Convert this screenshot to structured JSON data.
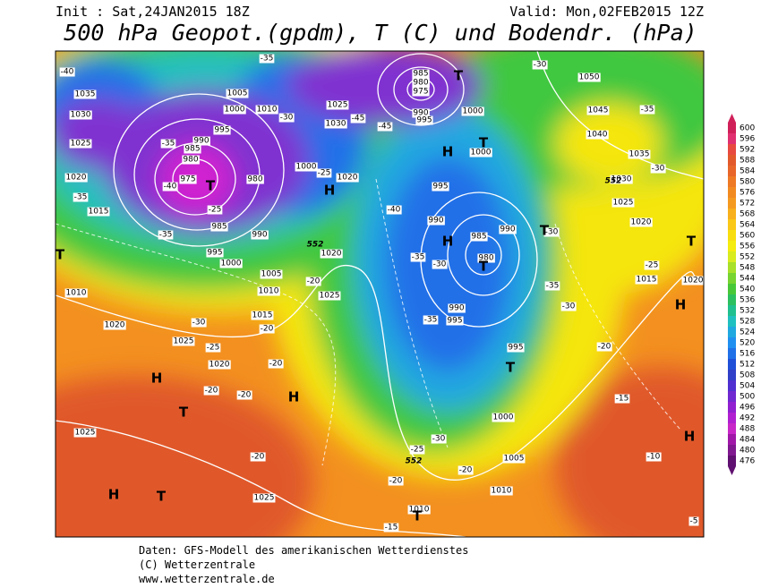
{
  "header": {
    "init": "Init : Sat,24JAN2015 18Z",
    "valid": "Valid: Mon,02FEB2015 12Z",
    "title": "500 hPa Geopot.(gpdm), T (C) und Bodendr. (hPa)"
  },
  "legend": {
    "labels": [
      600,
      596,
      592,
      588,
      584,
      580,
      576,
      572,
      568,
      564,
      560,
      556,
      552,
      548,
      544,
      540,
      536,
      532,
      528,
      524,
      520,
      516,
      512,
      508,
      504,
      500,
      496,
      492,
      488,
      484,
      480,
      476
    ],
    "colors": [
      "#d0205a",
      "#e03070",
      "#e84a40",
      "#e25a2c",
      "#e8662a",
      "#ee7a26",
      "#f28a22",
      "#f59a20",
      "#f8b01c",
      "#fac818",
      "#f8de10",
      "#f5ec10",
      "#d8ec20",
      "#a8e02a",
      "#78d430",
      "#48c838",
      "#2cc060",
      "#20c090",
      "#20c0c0",
      "#20a8e0",
      "#2090f0",
      "#2070e8",
      "#2050d8",
      "#3040c8",
      "#5030d0",
      "#7028d0",
      "#9020d0",
      "#b020d0",
      "#c828c8",
      "#a018a8",
      "#801890",
      "#601070"
    ]
  },
  "map": {
    "pressure_labels": [
      "1035",
      "1030",
      "1025",
      "1020",
      "1015",
      "1010",
      "1020",
      "1025",
      "1020",
      "1025",
      "1025",
      "1005",
      "1000",
      "1010",
      "995",
      "990",
      "985",
      "980",
      "975",
      "985",
      "995",
      "1000",
      "990",
      "1005",
      "1010",
      "1015",
      "1020",
      "1025",
      "980",
      "1000",
      "1020",
      "1025",
      "1030",
      "985",
      "980",
      "975",
      "990",
      "995",
      "1000",
      "1000",
      "995",
      "990",
      "985",
      "980",
      "990",
      "990",
      "995",
      "995",
      "1000",
      "1005",
      "1010",
      "1010",
      "1015",
      "1020",
      "1025",
      "1030",
      "1035",
      "1040",
      "1045",
      "1050",
      "1020"
    ],
    "temperature_labels": [
      "-40",
      "-35",
      "-40",
      "-35",
      "-25",
      "-25",
      "-30",
      "-20",
      "-20",
      "-20",
      "-20",
      "-20",
      "-20",
      "-30",
      "-35",
      "-45",
      "-45",
      "-40",
      "-35",
      "-30",
      "-35",
      "-30",
      "-35",
      "-30",
      "-30",
      "-35",
      "-30",
      "-25",
      "-20",
      "-15",
      "-10",
      "-5",
      "-25",
      "-30",
      "-20",
      "-20",
      "-15",
      "-25",
      "-35"
    ],
    "height_labels": [
      "552",
      "552",
      "552"
    ],
    "centers": [
      "T",
      "H",
      "T",
      "T",
      "H",
      "H",
      "T",
      "T",
      "T",
      "T",
      "H",
      "T",
      "H",
      "H",
      "T",
      "T",
      "H",
      "H",
      "T"
    ]
  },
  "footer": {
    "source": "Daten: GFS-Modell des amerikanischen Wetterdienstes",
    "copyright": "(C) Wetterzentrale",
    "url": "www.wetterzentrale.de"
  }
}
